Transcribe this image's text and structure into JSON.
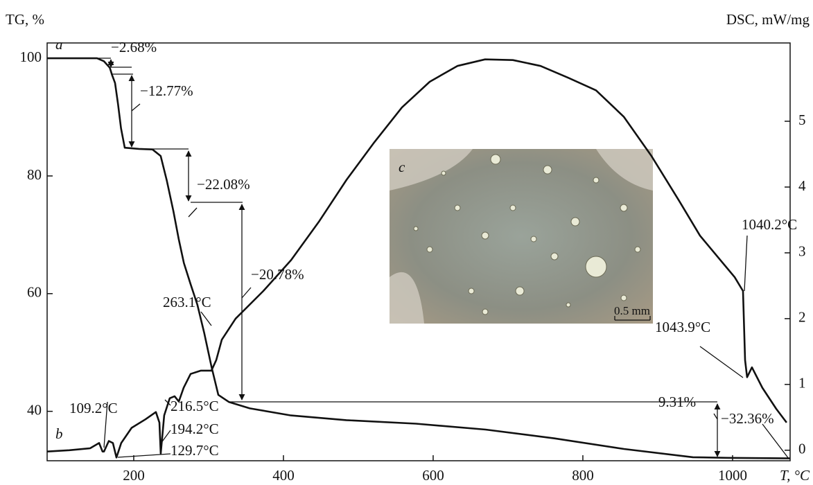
{
  "chart_data": {
    "type": "line",
    "y_label": "TG, %",
    "y2_label": "DSC, mW/mg",
    "x_label": "T, °C",
    "xlim": [
      84.3,
      1076.9
    ],
    "xticks": [
      200,
      400,
      600,
      800,
      1000
    ],
    "ylim": [
      31.6,
      102.6
    ],
    "yticks": [
      40,
      60,
      80,
      100
    ],
    "y2lim": [
      -0.16,
      6.19
    ],
    "y2ticks": [
      0,
      1,
      2,
      3,
      4,
      5
    ],
    "grid": false,
    "color": "#111111",
    "series": [
      {
        "name": "a",
        "color": "#111111",
        "x": [
          84.3,
          151,
          160,
          168,
          171,
          175,
          179,
          183,
          188,
          207,
          225,
          236,
          244,
          253,
          260,
          267,
          276,
          285,
          294,
          304,
          313,
          327,
          355,
          410,
          484,
          577,
          670,
          762,
          855,
          947,
          993,
          1077
        ],
        "values": [
          100,
          100,
          99.5,
          98.4,
          97.2,
          95.8,
          92.2,
          88.1,
          84.8,
          84.6,
          84.5,
          83.4,
          79.3,
          74,
          69.3,
          65.2,
          61.6,
          58.1,
          53.4,
          47.5,
          42.8,
          41.6,
          40.5,
          39.3,
          38.5,
          37.9,
          36.9,
          35.4,
          33.6,
          32.2,
          32.1,
          32
        ]
      },
      {
        "name": "b",
        "color": "#111111",
        "axis": "y2",
        "x": [
          84.3,
          113.9,
          141.7,
          153.7,
          158.3,
          160.2,
          166.7,
          172.2,
          176.9,
          183.3,
          197.2,
          215.7,
          229.6,
          234.3,
          236.1,
          240.7,
          248.1,
          254.6,
          260.2,
          266.7,
          276,
          289.8,
          303.7,
          310.2,
          317.6,
          336.1,
          373.1,
          410.2,
          447.2,
          484.3,
          521.3,
          558.3,
          595.4,
          632.4,
          669.4,
          706.5,
          743.5,
          780.6,
          817.6,
          854.6,
          891.7,
          928.7,
          956.5,
          1002.8,
          1013.9,
          1016.7,
          1019.4,
          1025.9,
          1039.8,
          1058.3,
          1072.2
        ],
        "values": [
          -0.02,
          0,
          0.03,
          0.11,
          -0.02,
          -0.02,
          0.14,
          0.11,
          -0.11,
          0.11,
          0.34,
          0.47,
          0.58,
          0.42,
          -0.05,
          0.53,
          0.79,
          0.82,
          0.74,
          0.95,
          1.16,
          1.21,
          1.21,
          1.37,
          1.68,
          2,
          2.42,
          2.89,
          3.47,
          4.11,
          4.68,
          5.21,
          5.6,
          5.84,
          5.94,
          5.93,
          5.84,
          5.66,
          5.47,
          5.07,
          4.47,
          3.79,
          3.26,
          2.63,
          2.42,
          1.37,
          1.11,
          1.26,
          0.95,
          0.63,
          0.42
        ]
      }
    ],
    "annotations": [
      "−2.68%",
      "−12.77%",
      "−22.08%",
      "263.1°C",
      "−20.78%",
      "109.2°C",
      "216.5°C",
      "194.2°C",
      "129.7°C",
      "1040.2°C",
      "1043.9°C",
      "−9.31%",
      "−32.36%"
    ],
    "inset": {
      "label": "c",
      "scale": "0.5 mm"
    }
  }
}
